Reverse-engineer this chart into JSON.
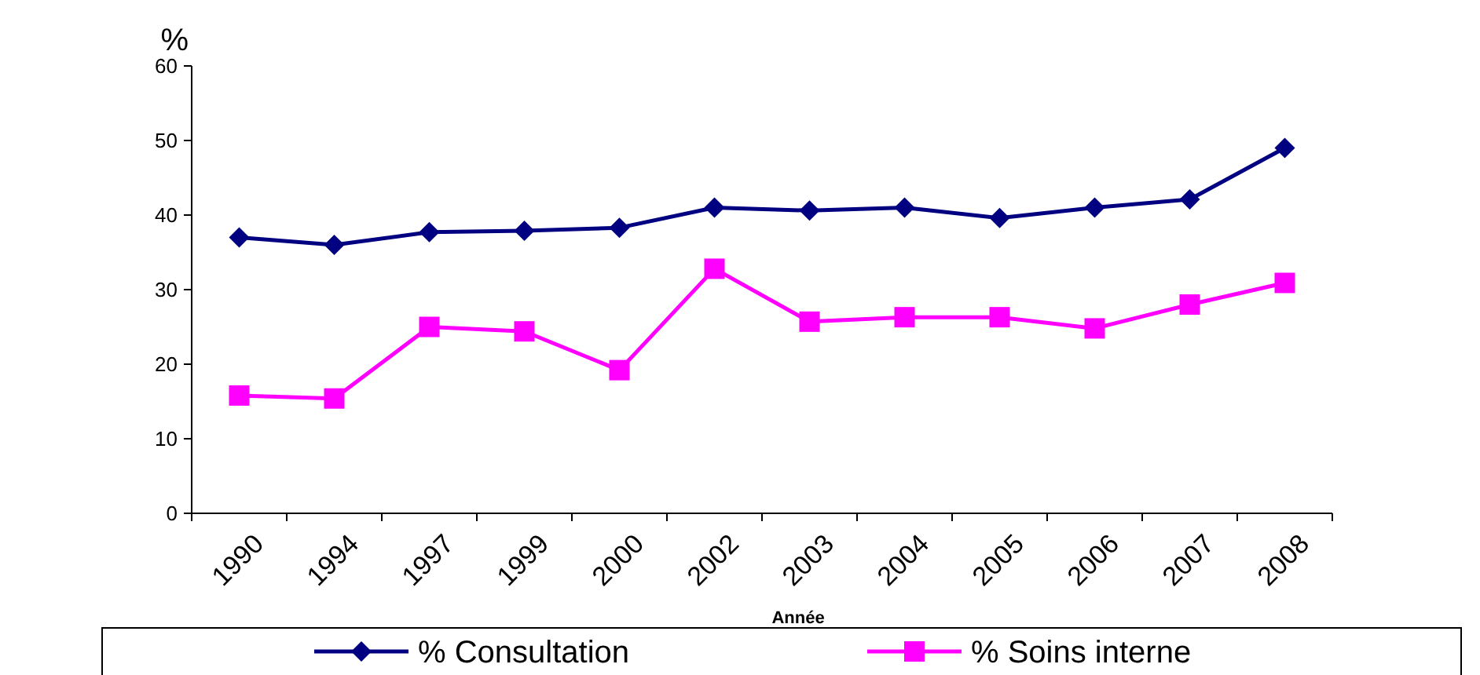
{
  "chart_data": {
    "type": "line",
    "xlabel": "Année",
    "ylabel": "%",
    "categories": [
      "1990",
      "1994",
      "1997",
      "1999",
      "2000",
      "2002",
      "2003",
      "2004",
      "2005",
      "2006",
      "2007",
      "2008"
    ],
    "series": [
      {
        "name": "% Consultation",
        "color": "#000080",
        "marker": "diamond",
        "values": [
          37,
          36,
          37.7,
          37.9,
          38.3,
          41,
          40.6,
          41,
          39.6,
          41,
          42.1,
          49
        ]
      },
      {
        "name": "% Soins interne",
        "color": "#ff00ff",
        "marker": "square",
        "values": [
          15.8,
          15.4,
          25,
          24.4,
          19.2,
          32.8,
          25.7,
          26.3,
          26.3,
          24.8,
          28,
          30.9
        ]
      }
    ],
    "ylim": [
      0,
      60
    ],
    "yticks": [
      0,
      10,
      20,
      30,
      40,
      50,
      60
    ],
    "grid": false,
    "legend": "bottom",
    "line_style": "solid"
  }
}
